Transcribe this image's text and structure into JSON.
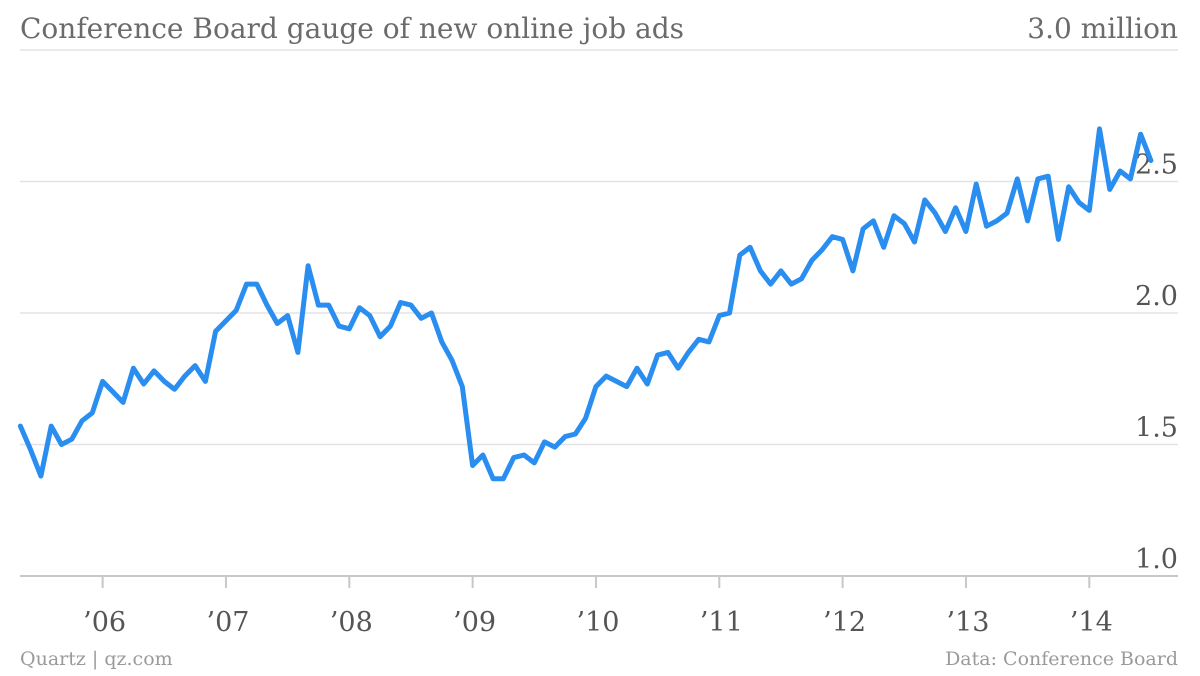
{
  "footer": {
    "source_left": "Quartz | qz.com",
    "source_right": "Data: Conference Board"
  },
  "chart_data": {
    "type": "line",
    "title": "Conference Board gauge of new online job ads",
    "unit_label": "3.0 million",
    "ylim": [
      1.0,
      3.0
    ],
    "yticks": [
      {
        "value": 3.0,
        "label": ""
      },
      {
        "value": 2.5,
        "label": "2.5"
      },
      {
        "value": 2.0,
        "label": "2.0"
      },
      {
        "value": 1.5,
        "label": "1.5"
      },
      {
        "value": 1.0,
        "label": "1.0"
      }
    ],
    "xlim": [
      2005.33,
      2014.33
    ],
    "xticks": [
      {
        "value": 2006,
        "label": "’06"
      },
      {
        "value": 2007,
        "label": "’07"
      },
      {
        "value": 2008,
        "label": "’08"
      },
      {
        "value": 2009,
        "label": "’09"
      },
      {
        "value": 2010,
        "label": "’10"
      },
      {
        "value": 2011,
        "label": "’11"
      },
      {
        "value": 2012,
        "label": "’12"
      },
      {
        "value": 2013,
        "label": "’13"
      },
      {
        "value": 2014,
        "label": "’14"
      }
    ],
    "grid": true,
    "line_color": "#2a8df0",
    "series": [
      {
        "x_start": 2005.333,
        "x_step_months": 1,
        "values": [
          1.57,
          1.48,
          1.38,
          1.57,
          1.5,
          1.52,
          1.59,
          1.62,
          1.74,
          1.7,
          1.66,
          1.79,
          1.73,
          1.78,
          1.74,
          1.71,
          1.76,
          1.8,
          1.74,
          1.93,
          1.97,
          2.01,
          2.11,
          2.11,
          2.03,
          1.96,
          1.99,
          1.85,
          2.18,
          2.03,
          2.03,
          1.95,
          1.94,
          2.02,
          1.99,
          1.91,
          1.95,
          2.04,
          2.03,
          1.98,
          2.0,
          1.89,
          1.82,
          1.72,
          1.42,
          1.46,
          1.37,
          1.37,
          1.45,
          1.46,
          1.43,
          1.51,
          1.49,
          1.53,
          1.54,
          1.6,
          1.72,
          1.76,
          1.74,
          1.72,
          1.79,
          1.73,
          1.84,
          1.85,
          1.79,
          1.85,
          1.9,
          1.89,
          1.99,
          2.0,
          2.22,
          2.25,
          2.16,
          2.11,
          2.16,
          2.11,
          2.13,
          2.2,
          2.24,
          2.29,
          2.28,
          2.16,
          2.32,
          2.35,
          2.25,
          2.37,
          2.34,
          2.27,
          2.43,
          2.38,
          2.31,
          2.4,
          2.31,
          2.49,
          2.33,
          2.35,
          2.38,
          2.51,
          2.35,
          2.51,
          2.52,
          2.28,
          2.48,
          2.42,
          2.39,
          2.7,
          2.47,
          2.54,
          2.51,
          2.68,
          2.58
        ]
      }
    ]
  }
}
